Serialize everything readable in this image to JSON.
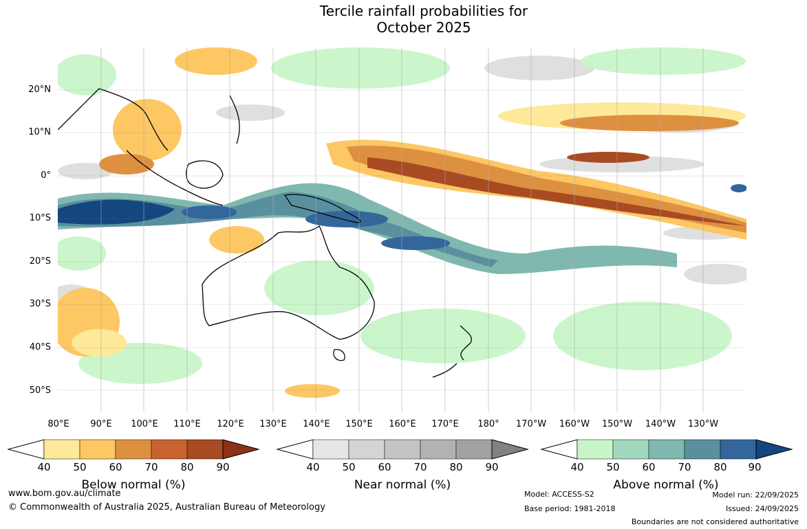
{
  "title": {
    "line1": "Tercile rainfall probabilities for",
    "line2": "October 2025"
  },
  "map": {
    "lat_labels": [
      "20°N",
      "10°N",
      "0°",
      "10°S",
      "20°S",
      "30°S",
      "40°S",
      "50°S"
    ],
    "lon_labels": [
      "80°E",
      "90°E",
      "100°E",
      "110°E",
      "120°E",
      "130°E",
      "140°E",
      "150°E",
      "160°E",
      "170°E",
      "180°",
      "170°W",
      "160°W",
      "150°W",
      "140°W",
      "130°W"
    ]
  },
  "colorbars": [
    {
      "title": "Below normal (%)",
      "ticks": [
        "40",
        "50",
        "60",
        "70",
        "80",
        "90"
      ],
      "colors": [
        "#ffffff",
        "#fee99a",
        "#fdc763",
        "#de9041",
        "#c8622e",
        "#a84a22",
        "#8c3218"
      ]
    },
    {
      "title": "Near normal (%)",
      "ticks": [
        "40",
        "50",
        "60",
        "70",
        "80",
        "90"
      ],
      "colors": [
        "#ffffff",
        "#e6e6e6",
        "#d4d4d4",
        "#c4c4c4",
        "#b2b2b2",
        "#a2a2a2",
        "#828282"
      ]
    },
    {
      "title": "Above normal (%)",
      "ticks": [
        "40",
        "50",
        "60",
        "70",
        "80",
        "90"
      ],
      "colors": [
        "#ffffff",
        "#c8f5c8",
        "#a2d9be",
        "#7fb8ae",
        "#5a8fa0",
        "#33679b",
        "#14467f"
      ]
    }
  ],
  "footer": {
    "website": "www.bom.gov.au/climate",
    "copyright": "© Commonwealth of Australia 2025, Australian Bureau of Meteorology",
    "model": "Model: ACCESS-S2",
    "base_period": "Base period: 1981-2018",
    "model_run": "Model run: 22/09/2025",
    "issued": "Issued: 24/09/2025",
    "disclaimer": "Boundaries are not considered authoritative"
  }
}
